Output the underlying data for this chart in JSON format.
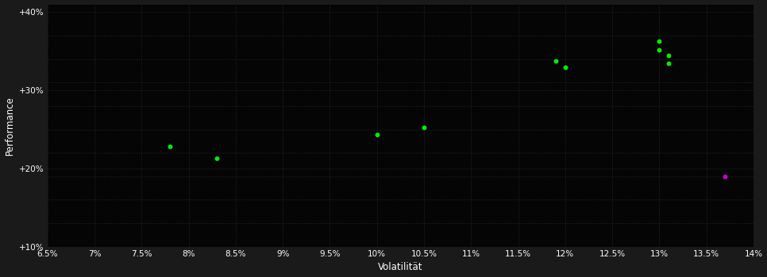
{
  "background_color": "#1a1a1a",
  "plot_bg_color": "#050505",
  "grid_color": "#2d2d2d",
  "xlabel": "Volatilität",
  "ylabel": "Performance",
  "xlim": [
    0.065,
    0.14
  ],
  "ylim": [
    0.1,
    0.41
  ],
  "xticks": [
    0.065,
    0.07,
    0.075,
    0.08,
    0.085,
    0.09,
    0.095,
    0.1,
    0.105,
    0.11,
    0.115,
    0.12,
    0.125,
    0.13,
    0.135,
    0.14
  ],
  "yticks_major": [
    0.1,
    0.2,
    0.3,
    0.4
  ],
  "yticks_minor": [
    0.1,
    0.13,
    0.16,
    0.19,
    0.22,
    0.25,
    0.28,
    0.31,
    0.34,
    0.37,
    0.4
  ],
  "green_points": [
    [
      0.078,
      0.228
    ],
    [
      0.083,
      0.213
    ],
    [
      0.1,
      0.243
    ],
    [
      0.105,
      0.253
    ],
    [
      0.119,
      0.338
    ],
    [
      0.12,
      0.33
    ],
    [
      0.13,
      0.363
    ],
    [
      0.13,
      0.352
    ],
    [
      0.131,
      0.345
    ],
    [
      0.131,
      0.335
    ]
  ],
  "magenta_points": [
    [
      0.137,
      0.19
    ]
  ],
  "green_color": "#00ee00",
  "magenta_color": "#cc00cc",
  "marker_size": 18,
  "font_color": "#ffffff",
  "font_size_ticks": 7.5,
  "font_size_labels": 8.5,
  "xlabel_pad": 4,
  "ylabel_pad": 4
}
